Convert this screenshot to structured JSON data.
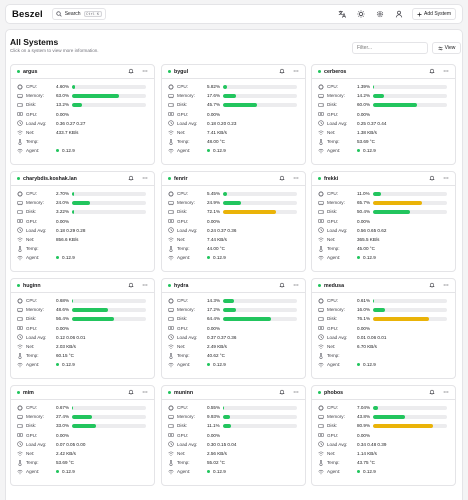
{
  "app": {
    "logo": "Beszel"
  },
  "search": {
    "label": "Search",
    "kbd": "Ctrl K"
  },
  "toolbar": {
    "add_label": "Add System"
  },
  "panel": {
    "title": "All Systems",
    "subtitle": "Click on a system to view more information.",
    "filter_placeholder": "Filter...",
    "view_label": "View"
  },
  "labels": {
    "cpu": "CPU:",
    "memory": "Memory:",
    "disk": "Disk:",
    "gpu": "GPU:",
    "load": "Load Avg:",
    "net": "Net:",
    "temp": "Temp:",
    "agent": "Agent:"
  },
  "colors": {
    "ok": "#22c55e",
    "warn": "#eab308",
    "brand": "#18181b"
  },
  "systems": [
    {
      "name": "argus",
      "cpu": "4.60%",
      "cpu_pct": 4.6,
      "mem": "63.0%",
      "mem_pct": 63.0,
      "disk": "13.2%",
      "disk_pct": 13.2,
      "gpu": "0.00%",
      "load": "0.36 0.27 0.27",
      "net": "433.7 KB/s",
      "temp": "",
      "agent": "0.12.9"
    },
    {
      "name": "bygul",
      "cpu": "5.82%",
      "cpu_pct": 5.82,
      "mem": "17.6%",
      "mem_pct": 17.6,
      "disk": "45.7%",
      "disk_pct": 45.7,
      "gpu": "0.00%",
      "load": "0.18 0.20 0.23",
      "net": "7.41 KB/s",
      "temp": "48.00 °C",
      "agent": "0.12.9"
    },
    {
      "name": "cerberos",
      "cpu": "1.39%",
      "cpu_pct": 1.39,
      "mem": "14.2%",
      "mem_pct": 14.2,
      "disk": "60.0%",
      "disk_pct": 60.0,
      "gpu": "0.00%",
      "load": "0.25 0.37 0.44",
      "net": "1.38 KB/s",
      "temp": "53.69 °C",
      "agent": "0.12.9"
    },
    {
      "name": "charybdis.koshak.lan",
      "cpu": "2.70%",
      "cpu_pct": 2.7,
      "mem": "24.0%",
      "mem_pct": 24.0,
      "disk": "3.22%",
      "disk_pct": 3.22,
      "gpu": "0.00%",
      "load": "0.18 0.29 0.28",
      "net": "856.6 KB/s",
      "temp": "",
      "agent": "0.12.9"
    },
    {
      "name": "fenrir",
      "cpu": "5.45%",
      "cpu_pct": 5.45,
      "mem": "24.9%",
      "mem_pct": 24.9,
      "disk": "72.1%",
      "disk_pct": 72.1,
      "gpu": "0.00%",
      "load": "0.24 0.37 0.36",
      "net": "7.44 KB/s",
      "temp": "44.00 °C",
      "agent": "0.12.9"
    },
    {
      "name": "frekki",
      "cpu": "11.0%",
      "cpu_pct": 11.0,
      "mem": "65.7%",
      "mem_pct": 65.7,
      "disk": "50.4%",
      "disk_pct": 50.4,
      "gpu": "0.00%",
      "load": "0.56 0.65 0.62",
      "net": "365.5 KB/s",
      "temp": "45.00 °C",
      "agent": "0.12.9"
    },
    {
      "name": "huginn",
      "cpu": "0.68%",
      "cpu_pct": 0.68,
      "mem": "48.6%",
      "mem_pct": 48.6,
      "disk": "56.4%",
      "disk_pct": 56.4,
      "gpu": "0.00%",
      "load": "0.12 0.06 0.01",
      "net": "2.03 KB/s",
      "temp": "60.15 °C",
      "agent": "0.12.9"
    },
    {
      "name": "hydra",
      "cpu": "14.3%",
      "cpu_pct": 14.3,
      "mem": "17.2%",
      "mem_pct": 17.2,
      "disk": "64.4%",
      "disk_pct": 64.4,
      "gpu": "0.00%",
      "load": "0.37 0.37 0.36",
      "net": "2.49 KB/s",
      "temp": "40.62 °C",
      "agent": "0.12.9"
    },
    {
      "name": "medusa",
      "cpu": "0.61%",
      "cpu_pct": 0.61,
      "mem": "16.0%",
      "mem_pct": 16.0,
      "disk": "76.1%",
      "disk_pct": 76.1,
      "gpu": "0.00%",
      "load": "0.01 0.06 0.01",
      "net": "6.70 KB/s",
      "temp": "",
      "agent": "0.12.9"
    },
    {
      "name": "mim",
      "cpu": "0.67%",
      "cpu_pct": 0.67,
      "mem": "27.4%",
      "mem_pct": 27.4,
      "disk": "33.0%",
      "disk_pct": 33.0,
      "gpu": "0.00%",
      "load": "0.07 0.05 0.00",
      "net": "2.42 KB/s",
      "temp": "53.69 °C",
      "agent": "0.12.9"
    },
    {
      "name": "muninn",
      "cpu": "0.55%",
      "cpu_pct": 0.55,
      "mem": "9.93%",
      "mem_pct": 9.93,
      "disk": "11.1%",
      "disk_pct": 11.1,
      "gpu": "0.00%",
      "load": "0.30 0.15 0.04",
      "net": "2.56 KB/s",
      "temp": "55.02 °C",
      "agent": "0.12.9"
    },
    {
      "name": "phobos",
      "cpu": "7.04%",
      "cpu_pct": 7.04,
      "mem": "43.8%",
      "mem_pct": 43.8,
      "disk": "80.9%",
      "disk_pct": 80.9,
      "gpu": "0.00%",
      "load": "0.34 0.48 0.39",
      "net": "1.14 KB/s",
      "temp": "43.75 °C",
      "agent": "0.12.9"
    }
  ]
}
